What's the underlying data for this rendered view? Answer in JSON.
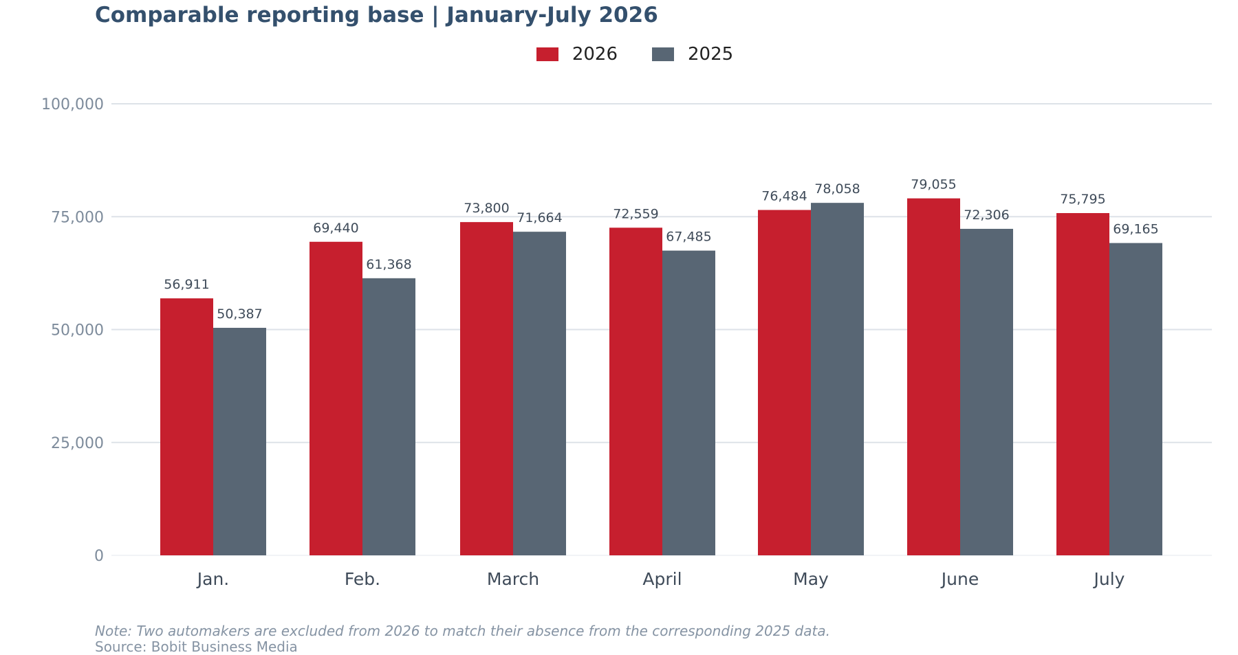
{
  "chart_data": {
    "type": "bar",
    "title": "Comparable reporting base | January-July 2026",
    "categories": [
      "Jan.",
      "Feb.",
      "March",
      "April",
      "May",
      "June",
      "July"
    ],
    "series": [
      {
        "name": "2026",
        "color": "#c61f2e",
        "values": [
          56911,
          69440,
          73800,
          72559,
          76484,
          79055,
          75795
        ],
        "labels": [
          "56,911",
          "69,440",
          "73,800",
          "72,559",
          "76,484",
          "79,055",
          "75,795"
        ]
      },
      {
        "name": "2025",
        "color": "#586674",
        "values": [
          50387,
          61368,
          71664,
          67485,
          78058,
          72306,
          69165
        ],
        "labels": [
          "50,387",
          "61,368",
          "71,664",
          "67,485",
          "78,058",
          "72,306",
          "69,165"
        ]
      }
    ],
    "ylim": [
      0,
      100000
    ],
    "yticks": [
      0,
      25000,
      50000,
      75000,
      100000
    ],
    "ytick_labels": [
      "0",
      "25,000",
      "50,000",
      "75,000",
      "100,000"
    ],
    "xlabel": "",
    "ylabel": "",
    "grid": "horizontal",
    "legend_position": "top-center",
    "note": "Note: Two automakers are excluded from 2026 to match their absence from the corresponding 2025 data.",
    "source": "Source: Bobit Business Media"
  }
}
